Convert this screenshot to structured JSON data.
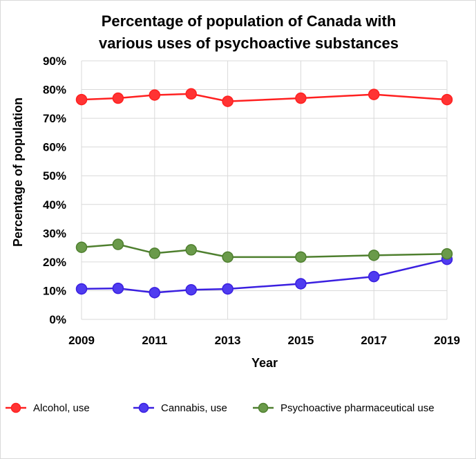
{
  "chart_data": {
    "type": "line",
    "title_lines": [
      "Percentage of population of Canada with",
      "various uses of psychoactive substances"
    ],
    "xlabel": "Year",
    "ylabel": "Percentage of population",
    "xlim": [
      2009,
      2019
    ],
    "ylim": [
      0,
      90
    ],
    "x_ticks": [
      "2009",
      "2011",
      "2013",
      "2015",
      "2017",
      "2019"
    ],
    "y_ticks": [
      "0%",
      "10%",
      "20%",
      "30%",
      "40%",
      "50%",
      "60%",
      "70%",
      "80%",
      "90%"
    ],
    "grid": true,
    "legend_position": "bottom",
    "series": [
      {
        "name": "Alcohol, use",
        "color": "#ff2020",
        "marker_color": "#ff3333",
        "x": [
          2009,
          2010,
          2011,
          2012,
          2013,
          2015,
          2017,
          2019
        ],
        "values": [
          76.5,
          77.0,
          78.1,
          78.5,
          75.9,
          77.0,
          78.3,
          76.5
        ]
      },
      {
        "name": "Cannabis, use",
        "color": "#3a1fe0",
        "marker_color": "#4f3cf0",
        "x": [
          2009,
          2010,
          2011,
          2012,
          2013,
          2015,
          2017,
          2019
        ],
        "values": [
          10.6,
          10.8,
          9.3,
          10.3,
          10.6,
          12.4,
          14.9,
          20.9
        ]
      },
      {
        "name": "Psychoactive pharmaceutical use",
        "color": "#4e7f2e",
        "marker_color": "#6a9a4a",
        "x": [
          2009,
          2010,
          2011,
          2012,
          2013,
          2015,
          2017,
          2019
        ],
        "values": [
          25.1,
          26.1,
          23.0,
          24.2,
          21.7,
          21.7,
          22.3,
          22.8
        ]
      }
    ]
  }
}
